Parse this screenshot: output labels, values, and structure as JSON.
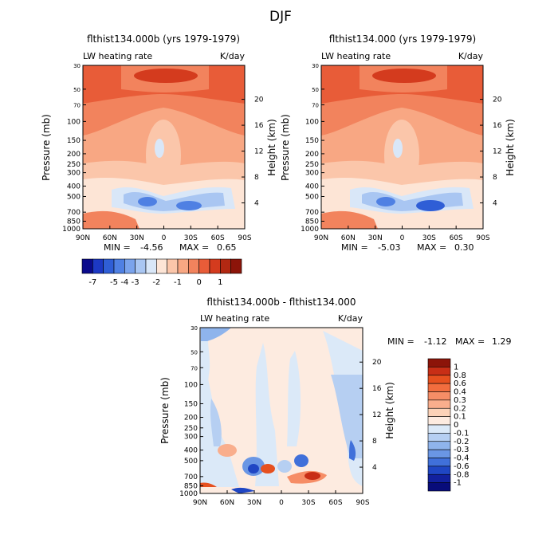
{
  "figure_title": "DJF",
  "chart_data": [
    {
      "type": "heatmap",
      "title": "flthist134.000b (yrs 1979-1979)",
      "left_label": "LW heating rate",
      "right_label": "K/day",
      "xlabel": "",
      "ylabel": "Pressure (mb)",
      "y2label": "Height (km)",
      "x_ticks": [
        "90N",
        "60N",
        "30N",
        "0",
        "30S",
        "60S",
        "90S"
      ],
      "y_ticks": [
        "30",
        "50",
        "70",
        "100",
        "150",
        "200",
        "250",
        "300",
        "400",
        "500",
        "700",
        "850",
        "1000"
      ],
      "y2_ticks": [
        "20",
        "16",
        "12",
        "8",
        "4"
      ],
      "min_label": "MIN =",
      "min_value": "-4.56",
      "max_label": "MAX =",
      "max_value": "0.65",
      "ylim": [
        1000,
        30
      ],
      "xlim": [
        90,
        -90
      ]
    },
    {
      "type": "heatmap",
      "title": "flthist134.000 (yrs 1979-1979)",
      "left_label": "LW heating rate",
      "right_label": "K/day",
      "xlabel": "",
      "ylabel": "Pressure (mb)",
      "y2label": "Height (km)",
      "x_ticks": [
        "90N",
        "60N",
        "30N",
        "0",
        "30S",
        "60S",
        "90S"
      ],
      "y_ticks": [
        "30",
        "50",
        "70",
        "100",
        "150",
        "200",
        "250",
        "300",
        "400",
        "500",
        "700",
        "850",
        "1000"
      ],
      "y2_ticks": [
        "20",
        "16",
        "12",
        "8",
        "4"
      ],
      "min_label": "MIN =",
      "min_value": "-5.03",
      "max_label": "MAX =",
      "max_value": "0.30",
      "ylim": [
        1000,
        30
      ],
      "xlim": [
        90,
        -90
      ]
    },
    {
      "type": "heatmap",
      "title": "flthist134.000b - flthist134.000",
      "left_label": "LW heating rate",
      "right_label": "K/day",
      "xlabel": "",
      "ylabel": "Pressure (mb)",
      "y2label": "Height (km)",
      "x_ticks": [
        "90N",
        "60N",
        "30N",
        "0",
        "30S",
        "60S",
        "90S"
      ],
      "y_ticks": [
        "30",
        "50",
        "70",
        "100",
        "150",
        "200",
        "250",
        "300",
        "400",
        "500",
        "700",
        "850",
        "1000"
      ],
      "y2_ticks": [
        "20",
        "16",
        "12",
        "8",
        "4"
      ],
      "min_label": "MIN =",
      "min_value": "-1.12",
      "max_label": "MAX =",
      "max_value": "1.29",
      "ylim": [
        1000,
        30
      ],
      "xlim": [
        90,
        -90
      ]
    }
  ],
  "colorbars": {
    "top": {
      "orientation": "horizontal",
      "labels": [
        "-7",
        "-5",
        "-4",
        "-3",
        "-2",
        "-1",
        "0",
        "1"
      ],
      "colors": [
        "#0a0a8c",
        "#1c38c4",
        "#2f5ed6",
        "#4f80e3",
        "#7aa3ec",
        "#a9c6f2",
        "#d9e7f8",
        "#fde5d6",
        "#fbc6aa",
        "#f8a783",
        "#f2835d",
        "#e85c38",
        "#d43b1e",
        "#b22812",
        "#8c1409"
      ]
    },
    "bottom": {
      "orientation": "vertical",
      "labels": [
        "1",
        "0.8",
        "0.6",
        "0.4",
        "0.3",
        "0.2",
        "0.1",
        "0",
        "-0.1",
        "-0.2",
        "-0.3",
        "-0.4",
        "-0.6",
        "-0.8",
        "-1"
      ],
      "colors": [
        "#8c1409",
        "#c82e16",
        "#e6501f",
        "#f26d3e",
        "#f68d66",
        "#f9ae8d",
        "#fcd2b8",
        "#fdebe0",
        "#dbe9f8",
        "#b6cff2",
        "#8fb4ec",
        "#6a96e4",
        "#4070da",
        "#1f46c4",
        "#12209e",
        "#080c7a"
      ]
    }
  }
}
